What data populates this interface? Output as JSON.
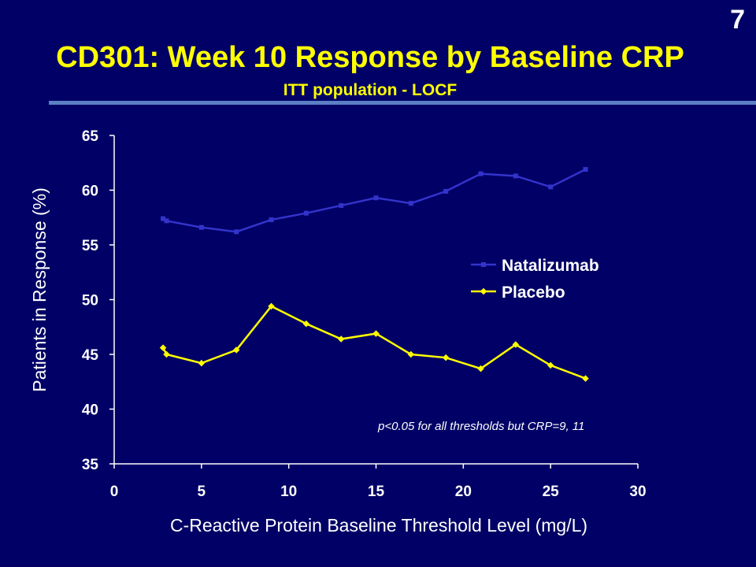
{
  "slide_number": "7",
  "title": "CD301: Week 10 Response by Baseline CRP",
  "subtitle": "ITT population  - LOCF",
  "colors": {
    "background": "#000066",
    "title": "#ffff00",
    "text": "#ffffff",
    "natalizumab": "#3333cc",
    "placebo": "#ffff00",
    "rule": "#5b7fc4"
  },
  "chart_data": {
    "type": "line",
    "title": "",
    "xlabel": "C-Reactive Protein Baseline Threshold Level (mg/L)",
    "ylabel": "Patients in Response (%)",
    "xlim": [
      0,
      30
    ],
    "ylim": [
      35,
      65
    ],
    "xticks": [
      0,
      5,
      10,
      15,
      20,
      25,
      30
    ],
    "yticks": [
      35,
      40,
      45,
      50,
      55,
      60,
      65
    ],
    "grid": false,
    "legend_position": "right-middle",
    "annotation": "p<0.05 for all thresholds but CRP=9, 11",
    "series": [
      {
        "name": "Natalizumab",
        "marker": "square",
        "x": [
          2.8,
          3,
          5,
          7,
          9,
          11,
          13,
          15,
          17,
          19,
          21,
          23,
          25,
          27
        ],
        "y": [
          57.4,
          57.2,
          56.6,
          56.2,
          57.3,
          57.9,
          58.6,
          59.3,
          58.8,
          59.9,
          61.5,
          61.3,
          60.3,
          61.9
        ]
      },
      {
        "name": "Placebo",
        "marker": "diamond",
        "x": [
          2.8,
          3,
          5,
          7,
          9,
          11,
          13,
          15,
          17,
          19,
          21,
          23,
          25,
          27
        ],
        "y": [
          45.6,
          45.0,
          44.2,
          45.4,
          49.4,
          47.8,
          46.4,
          46.9,
          45.0,
          44.7,
          43.7,
          45.9,
          44.0,
          42.8
        ]
      }
    ]
  }
}
